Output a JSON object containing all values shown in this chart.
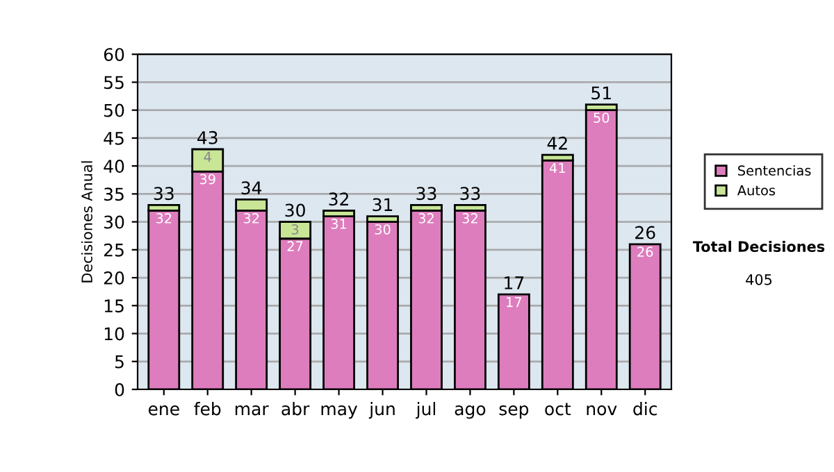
{
  "chart_data": {
    "type": "bar",
    "stacked": true,
    "ylabel": "Decisiones Anual",
    "categories": [
      "ene",
      "feb",
      "mar",
      "abr",
      "may",
      "jun",
      "jul",
      "ago",
      "sep",
      "oct",
      "nov",
      "dic"
    ],
    "series": [
      {
        "name": "Sentencias",
        "color": "#dd7dbd",
        "values": [
          32,
          39,
          32,
          27,
          31,
          30,
          32,
          32,
          17,
          41,
          50,
          26
        ],
        "value_labels": [
          "32",
          "39",
          "32",
          "27",
          "31",
          "30",
          "32",
          "32",
          "17",
          "41",
          "50",
          "26"
        ]
      },
      {
        "name": "Autos",
        "color": "#c8e696",
        "values": [
          1,
          4,
          2,
          3,
          1,
          1,
          1,
          1,
          0,
          1,
          1,
          0
        ],
        "value_labels": [
          null,
          "4",
          null,
          "3",
          null,
          null,
          null,
          null,
          null,
          null,
          null,
          null
        ]
      }
    ],
    "totals": [
      "33",
      "43",
      "34",
      "30",
      "32",
      "31",
      "33",
      "33",
      "17",
      "42",
      "51",
      "26"
    ],
    "ylim": [
      0,
      60
    ],
    "yticks": [
      0,
      5,
      10,
      15,
      20,
      25,
      30,
      35,
      40,
      45,
      50,
      55,
      60
    ],
    "grid": "y",
    "legend": "right",
    "annotations": [
      "Total Decisiones",
      "405"
    ]
  }
}
